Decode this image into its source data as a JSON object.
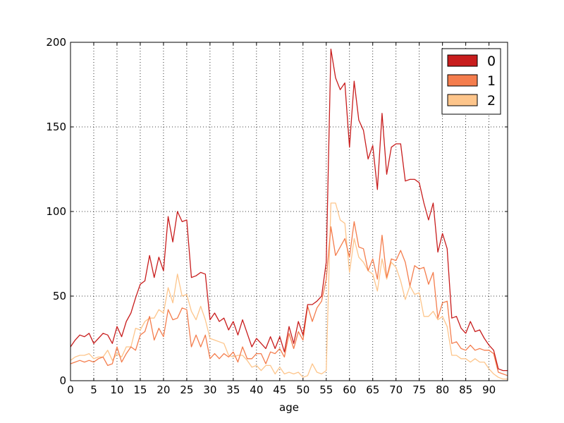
{
  "chart_data": {
    "type": "line",
    "title": "",
    "xlabel": "age",
    "ylabel": "",
    "xlim": [
      0,
      94
    ],
    "ylim": [
      0,
      200
    ],
    "grid": true,
    "legend_position": "top-right",
    "x_ticks": [
      "0",
      "5",
      "10",
      "15",
      "20",
      "25",
      "30",
      "35",
      "40",
      "45",
      "50",
      "55",
      "60",
      "65",
      "70",
      "75",
      "80",
      "85",
      "90"
    ],
    "y_ticks": [
      "0",
      "50",
      "100",
      "150",
      "200"
    ],
    "x": [
      0,
      1,
      2,
      3,
      4,
      5,
      6,
      7,
      8,
      9,
      10,
      11,
      12,
      13,
      14,
      15,
      16,
      17,
      18,
      19,
      20,
      21,
      22,
      23,
      24,
      25,
      26,
      27,
      28,
      29,
      30,
      31,
      32,
      33,
      34,
      35,
      36,
      37,
      38,
      39,
      40,
      41,
      42,
      43,
      44,
      45,
      46,
      47,
      48,
      49,
      50,
      51,
      52,
      53,
      54,
      55,
      56,
      57,
      58,
      59,
      60,
      61,
      62,
      63,
      64,
      65,
      66,
      67,
      68,
      69,
      70,
      71,
      72,
      73,
      74,
      75,
      76,
      77,
      78,
      79,
      80,
      81,
      82,
      83,
      84,
      85,
      86,
      87,
      88,
      89,
      90,
      91,
      92,
      93,
      94
    ],
    "series": [
      {
        "name": "0",
        "color": "#c81d1d",
        "values": [
          20,
          24,
          27,
          26,
          28,
          22,
          25,
          28,
          27,
          22,
          32,
          26,
          35,
          40,
          49,
          57,
          59,
          74,
          61,
          73,
          65,
          97,
          82,
          100,
          94,
          95,
          61,
          62,
          64,
          63,
          36,
          40,
          35,
          37,
          30,
          35,
          27,
          36,
          28,
          20,
          25,
          22,
          19,
          26,
          19,
          26,
          17,
          32,
          22,
          35,
          27,
          45,
          45,
          47,
          50,
          70,
          196,
          179,
          172,
          176,
          138,
          177,
          154,
          148,
          131,
          139,
          113,
          158,
          122,
          138,
          140,
          140,
          118,
          119,
          119,
          117,
          105,
          95,
          105,
          76,
          87,
          78,
          37,
          38,
          31,
          28,
          35,
          29,
          30,
          25,
          21,
          18,
          7,
          6,
          6
        ]
      },
      {
        "name": "1",
        "color": "#f47d4d",
        "values": [
          10,
          11,
          12,
          11,
          12,
          11,
          13,
          14,
          9,
          10,
          20,
          11,
          16,
          20,
          18,
          27,
          29,
          38,
          24,
          31,
          26,
          42,
          36,
          37,
          43,
          42,
          20,
          27,
          20,
          27,
          13,
          16,
          13,
          16,
          14,
          17,
          11,
          20,
          13,
          13,
          16,
          16,
          10,
          17,
          16,
          19,
          14,
          28,
          19,
          29,
          24,
          44,
          35,
          43,
          47,
          60,
          91,
          74,
          79,
          84,
          73,
          94,
          79,
          78,
          65,
          72,
          60,
          86,
          61,
          72,
          71,
          77,
          70,
          56,
          68,
          66,
          67,
          57,
          64,
          37,
          46,
          47,
          22,
          23,
          19,
          18,
          21,
          18,
          19,
          18,
          18,
          16,
          5,
          4,
          3
        ]
      },
      {
        "name": "2",
        "color": "#fdc58b",
        "values": [
          12,
          14,
          15,
          15,
          16,
          13,
          14,
          14,
          18,
          12,
          16,
          14,
          20,
          20,
          31,
          30,
          35,
          37,
          37,
          42,
          40,
          55,
          46,
          63,
          50,
          51,
          41,
          36,
          44,
          36,
          25,
          24,
          23,
          22,
          15,
          14,
          15,
          15,
          12,
          8,
          9,
          6,
          9,
          9,
          4,
          8,
          4,
          5,
          4,
          5,
          2,
          3,
          10,
          5,
          4,
          6,
          105,
          105,
          95,
          93,
          64,
          84,
          73,
          70,
          65,
          63,
          53,
          72,
          60,
          70,
          67,
          59,
          48,
          56,
          51,
          52,
          38,
          38,
          41,
          36,
          38,
          32,
          15,
          15,
          13,
          13,
          11,
          13,
          11,
          11,
          7,
          4,
          2,
          1,
          1
        ]
      }
    ]
  }
}
